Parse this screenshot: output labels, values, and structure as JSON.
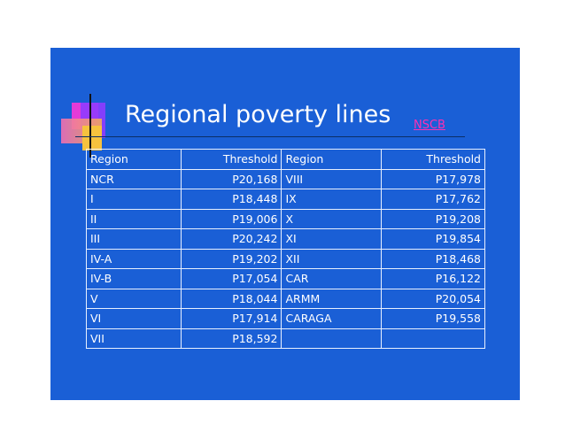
{
  "slide": {
    "title": "Regional poverty lines",
    "source_link": "NSCB",
    "colors": {
      "background": "#1a5fd6",
      "text": "#ffffff",
      "link": "#ff2fb3"
    }
  },
  "table": {
    "headers": [
      "Region",
      "Threshold",
      "Region",
      "Threshold"
    ],
    "rows": [
      [
        "NCR",
        "P20,168",
        "VIII",
        "P17,978"
      ],
      [
        "I",
        "P18,448",
        "IX",
        "P17,762"
      ],
      [
        "II",
        "P19,006",
        "X",
        "P19,208"
      ],
      [
        "III",
        "P20,242",
        "XI",
        "P19,854"
      ],
      [
        "IV-A",
        "P19,202",
        "XII",
        "P18,468"
      ],
      [
        "IV-B",
        "P17,054",
        "CAR",
        "P16,122"
      ],
      [
        "V",
        "P18,044",
        "ARMM",
        "P20,054"
      ],
      [
        "VI",
        "P17,914",
        "CARAGA",
        "P19,558"
      ],
      [
        "VII",
        "P18,592",
        "",
        ""
      ]
    ]
  }
}
